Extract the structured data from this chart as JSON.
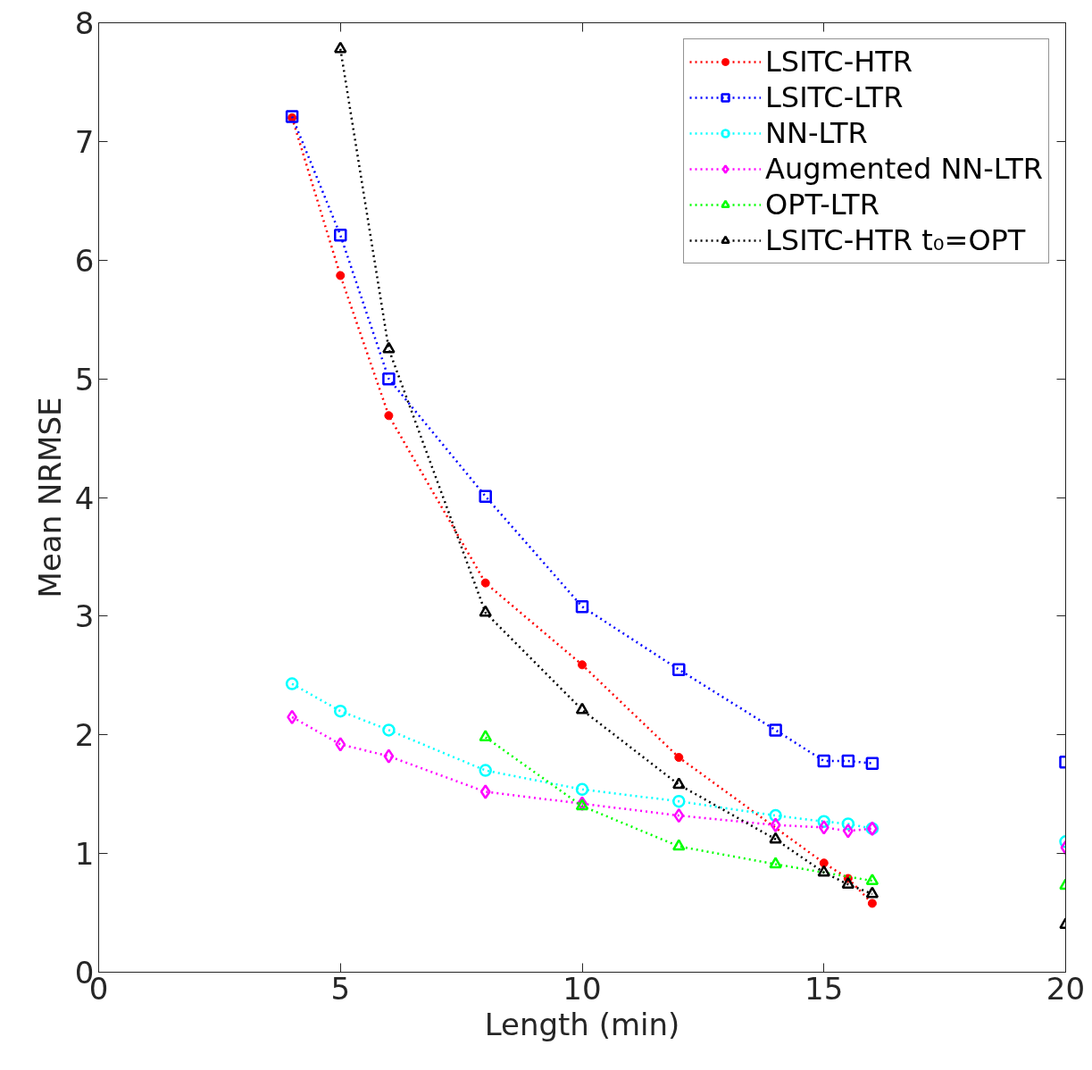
{
  "chart_data": {
    "type": "line",
    "xlabel": "Length (min)",
    "ylabel": "Mean NRMSE",
    "xlim": [
      0,
      20
    ],
    "ylim": [
      0,
      8
    ],
    "xticks": [
      0,
      5,
      10,
      15,
      20
    ],
    "yticks": [
      0,
      1,
      2,
      3,
      4,
      5,
      6,
      7,
      8
    ],
    "grid": false,
    "legend": "top right",
    "line_style": "dotted",
    "series": [
      {
        "name": "LSITC-HTR",
        "color": "#ff0000",
        "marker": "dot",
        "x": [
          4,
          5,
          6,
          8,
          10,
          12,
          15,
          15.5,
          16
        ],
        "values": [
          7.2,
          5.87,
          4.69,
          3.28,
          2.59,
          1.81,
          0.92,
          0.79,
          0.58
        ]
      },
      {
        "name": "LSITC-LTR",
        "color": "#0000ff",
        "marker": "square",
        "x": [
          4,
          5,
          6,
          8,
          10,
          12,
          14,
          15,
          15.5,
          16,
          18,
          20
        ],
        "values": [
          7.21,
          6.21,
          5.0,
          4.01,
          3.08,
          2.55,
          2.04,
          1.78,
          1.78,
          1.76,
          null,
          1.77
        ]
      },
      {
        "name": "NN-LTR",
        "color": "#00ffff",
        "marker": "circle",
        "x": [
          4,
          5,
          6,
          8,
          10,
          12,
          14,
          15,
          15.5,
          16,
          18,
          20
        ],
        "values": [
          2.43,
          2.2,
          2.04,
          1.7,
          1.54,
          1.44,
          1.32,
          1.27,
          1.25,
          1.21,
          null,
          1.1
        ]
      },
      {
        "name": "Augmented NN-LTR",
        "color": "#ff00ff",
        "marker": "diamond",
        "x": [
          4,
          5,
          6,
          8,
          10,
          12,
          14,
          15,
          15.5,
          16,
          18,
          20
        ],
        "values": [
          2.15,
          1.92,
          1.82,
          1.52,
          1.42,
          1.32,
          1.24,
          1.22,
          1.19,
          1.21,
          null,
          1.05
        ]
      },
      {
        "name": "OPT-LTR",
        "color": "#00ff00",
        "marker": "triangle",
        "x": [
          8,
          10,
          12,
          14,
          16,
          18,
          20
        ],
        "values": [
          1.98,
          1.4,
          1.06,
          0.91,
          0.77,
          null,
          0.73
        ]
      },
      {
        "name": "LSITC-HTR t₀=OPT",
        "color": "#000000",
        "marker": "triangle",
        "x": [
          5,
          6,
          8,
          10,
          12,
          14,
          15,
          15.5,
          16,
          18,
          20
        ],
        "values": [
          7.78,
          5.25,
          3.03,
          2.21,
          1.58,
          1.12,
          0.84,
          0.74,
          0.66,
          null,
          0.4
        ]
      }
    ]
  }
}
